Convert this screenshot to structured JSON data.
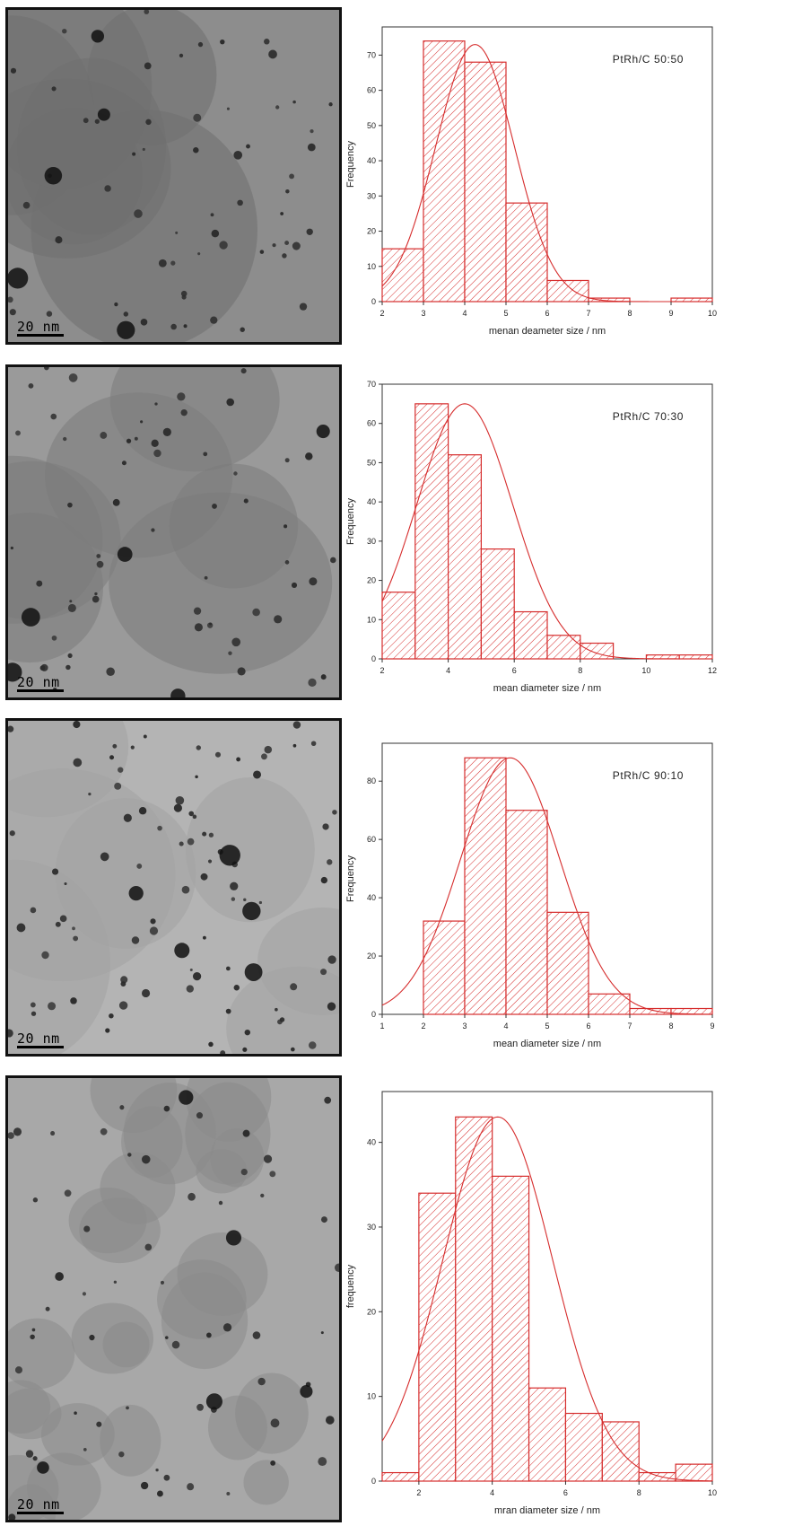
{
  "panels": [
    {
      "scale_label": "20 nm",
      "tem_tone": "#8d8d8d",
      "tem_style": "dark"
    },
    {
      "scale_label": "20 nm",
      "tem_tone": "#9a9a9a",
      "tem_style": "mid"
    },
    {
      "scale_label": "20 nm",
      "tem_tone": "#b4b4b4",
      "tem_style": "light"
    },
    {
      "scale_label": "20 nm",
      "tem_tone": "#a8a8a8",
      "tem_style": "cluster"
    }
  ],
  "chart_data": [
    {
      "type": "bar",
      "annotation": "PtRh/C 50:50",
      "xlabel": "menan deameter size / nm",
      "ylabel": "Frequency",
      "xlim": [
        2,
        10
      ],
      "ylim": [
        0,
        78
      ],
      "xticks": [
        2,
        3,
        4,
        5,
        6,
        7,
        8,
        9,
        10
      ],
      "yticks": [
        0,
        10,
        20,
        30,
        40,
        50,
        60,
        70
      ],
      "bins": [
        [
          2,
          3
        ],
        [
          3,
          4
        ],
        [
          4,
          5
        ],
        [
          5,
          6
        ],
        [
          6,
          7
        ],
        [
          7,
          8
        ],
        [
          8,
          9
        ],
        [
          9,
          10
        ]
      ],
      "values": [
        15,
        74,
        68,
        28,
        6,
        1,
        0,
        1
      ],
      "fit": {
        "type": "gaussian",
        "mean": 4.25,
        "sigma": 0.95,
        "peak": 73
      },
      "color": "#d62d2d"
    },
    {
      "type": "bar",
      "annotation": "PtRh/C 70:30",
      "xlabel": "mean diameter size / nm",
      "ylabel": "Frequency",
      "xlim": [
        2,
        12
      ],
      "ylim": [
        0,
        70
      ],
      "xticks": [
        2,
        4,
        6,
        8,
        10,
        12
      ],
      "yticks": [
        0,
        10,
        20,
        30,
        40,
        50,
        60,
        70
      ],
      "bins": [
        [
          2,
          3
        ],
        [
          3,
          4
        ],
        [
          4,
          5
        ],
        [
          5,
          6
        ],
        [
          6,
          7
        ],
        [
          7,
          8
        ],
        [
          8,
          9
        ],
        [
          9,
          10
        ],
        [
          10,
          11
        ],
        [
          11,
          12
        ]
      ],
      "values": [
        17,
        65,
        52,
        28,
        12,
        6,
        4,
        0,
        1,
        1
      ],
      "fit": {
        "type": "gaussian",
        "mean": 4.5,
        "sigma": 1.45,
        "peak": 65
      },
      "color": "#d62d2d"
    },
    {
      "type": "bar",
      "annotation": "PtRh/C 90:10",
      "xlabel": "mean diameter size / nm",
      "ylabel": "Frequency",
      "xlim": [
        1,
        9
      ],
      "ylim": [
        0,
        93
      ],
      "xticks": [
        1,
        2,
        3,
        4,
        5,
        6,
        7,
        8,
        9
      ],
      "yticks": [
        0,
        20,
        40,
        60,
        80
      ],
      "bins": [
        [
          2,
          3
        ],
        [
          3,
          4
        ],
        [
          4,
          5
        ],
        [
          5,
          6
        ],
        [
          6,
          7
        ],
        [
          7,
          8
        ],
        [
          8,
          9
        ]
      ],
      "values": [
        32,
        88,
        70,
        35,
        7,
        2,
        2
      ],
      "fit": {
        "type": "gaussian",
        "mean": 4.1,
        "sigma": 1.2,
        "peak": 88
      },
      "color": "#d62d2d"
    },
    {
      "type": "bar",
      "annotation": "",
      "xlabel": "mran diameter size / nm",
      "ylabel": "frequency",
      "xlim": [
        1,
        10
      ],
      "ylim": [
        0,
        46
      ],
      "xticks": [
        2,
        4,
        6,
        8,
        10
      ],
      "yticks": [
        0,
        10,
        20,
        30,
        40
      ],
      "bins": [
        [
          1,
          2
        ],
        [
          2,
          3
        ],
        [
          3,
          4
        ],
        [
          4,
          5
        ],
        [
          5,
          6
        ],
        [
          6,
          7
        ],
        [
          7,
          8
        ],
        [
          8,
          9
        ],
        [
          9,
          10
        ]
      ],
      "values": [
        1,
        34,
        43,
        36,
        11,
        8,
        7,
        1,
        2
      ],
      "fit": {
        "type": "gaussian",
        "mean": 4.15,
        "sigma": 1.5,
        "peak": 43
      },
      "color": "#d62d2d"
    }
  ]
}
